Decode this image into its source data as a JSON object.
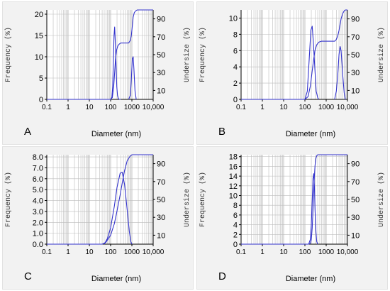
{
  "chart_data": [
    {
      "panel": "A",
      "type": "line",
      "xlabel": "Diameter (nm)",
      "ylabel_left": "Frequency (%)",
      "ylabel_right": "Undersize (%)",
      "xscale": "log",
      "xlim": [
        0.1,
        10000
      ],
      "x_ticks": [
        "0.1",
        "1",
        "10",
        "100",
        "1000",
        "10,000"
      ],
      "ylim": [
        0,
        21
      ],
      "y_ticks": [
        "0",
        "5",
        "10",
        "15",
        "20"
      ],
      "ylim_right": [
        0,
        100
      ],
      "y2_ticks": [
        "10",
        "30",
        "50",
        "70",
        "90"
      ],
      "grid": true,
      "series": [
        {
          "axis": "left",
          "x": [
            100,
            115,
            125,
            135,
            145,
            155,
            165,
            180,
            195,
            210,
            230,
            260,
            300
          ],
          "y": [
            0,
            0.5,
            3,
            9,
            15,
            17,
            14,
            8,
            3,
            1,
            0.2,
            0,
            0
          ]
        },
        {
          "axis": "left",
          "x": [
            700,
            850,
            950,
            1050,
            1150,
            1250,
            1400,
            1600
          ],
          "y": [
            0,
            1,
            5,
            9.5,
            10,
            7,
            2,
            0
          ]
        },
        {
          "axis": "right",
          "x": [
            0.1,
            100,
            120,
            140,
            155,
            170,
            190,
            220,
            260,
            300,
            500,
            700,
            850,
            950,
            1050,
            1150,
            1300,
            1500,
            1800,
            10000
          ],
          "y": [
            0,
            0,
            2,
            15,
            30,
            45,
            55,
            60,
            62,
            63,
            63,
            63,
            66,
            72,
            82,
            92,
            97,
            99,
            100,
            100
          ]
        }
      ]
    },
    {
      "panel": "B",
      "type": "line",
      "xlabel": "Diameter (nm)",
      "ylabel_left": "Frequency (%)",
      "ylabel_right": "Undersize (%)",
      "xscale": "log",
      "xlim": [
        0.1,
        10000
      ],
      "x_ticks": [
        "0.1",
        "1",
        "10",
        "100",
        "1000",
        "10,000"
      ],
      "ylim": [
        0,
        11
      ],
      "y_ticks": [
        "0",
        "2",
        "4",
        "6",
        "8",
        "10"
      ],
      "ylim_right": [
        0,
        100
      ],
      "y2_ticks": [
        "10",
        "30",
        "50",
        "70",
        "90"
      ],
      "grid": true,
      "series": [
        {
          "axis": "left",
          "x": [
            100,
            130,
            160,
            190,
            220,
            250,
            290,
            340,
            400,
            450
          ],
          "y": [
            0,
            1,
            5,
            8.5,
            9,
            7,
            4,
            1,
            0.2,
            0
          ]
        },
        {
          "axis": "left",
          "x": [
            2500,
            3000,
            3500,
            4000,
            4500,
            5000,
            5500,
            6000,
            7000,
            8000
          ],
          "y": [
            0,
            1,
            3,
            5.5,
            6.5,
            6,
            4.5,
            3,
            0.8,
            0
          ]
        },
        {
          "axis": "right",
          "x": [
            0.1,
            100,
            140,
            180,
            220,
            260,
            300,
            360,
            450,
            600,
            1500,
            2500,
            3000,
            3500,
            4000,
            4500,
            5000,
            6000,
            7000,
            8000,
            10000
          ],
          "y": [
            0,
            0,
            3,
            15,
            32,
            45,
            55,
            61,
            64,
            65,
            65,
            65,
            67,
            71,
            77,
            84,
            90,
            96,
            99,
            100,
            100
          ]
        }
      ]
    },
    {
      "panel": "C",
      "type": "line",
      "xlabel": "Diameter (nm)",
      "ylabel_left": "Frequency (%)",
      "ylabel_right": "Undersize (%)",
      "xscale": "log",
      "xlim": [
        0.1,
        10000
      ],
      "x_ticks": [
        "0.1",
        "1",
        "10",
        "100",
        "1000",
        "10,000"
      ],
      "ylim": [
        0,
        8.2
      ],
      "y_ticks": [
        "0.0",
        "1.0",
        "2.0",
        "3.0",
        "4.0",
        "5.0",
        "6.0",
        "7.0",
        "8.0"
      ],
      "ylim_right": [
        0,
        100
      ],
      "y2_ticks": [
        "10",
        "30",
        "50",
        "70",
        "90"
      ],
      "grid": true,
      "series": [
        {
          "axis": "left",
          "x": [
            50,
            70,
            100,
            150,
            200,
            280,
            350,
            450,
            600,
            750,
            900,
            1000
          ],
          "y": [
            0,
            0.5,
            1.5,
            3.5,
            5.2,
            6.5,
            6.6,
            5.5,
            3.2,
            1.2,
            0.2,
            0
          ]
        },
        {
          "axis": "right",
          "x": [
            0.1,
            40,
            60,
            100,
            150,
            200,
            280,
            350,
            450,
            600,
            800,
            1000,
            1200,
            10000
          ],
          "y": [
            0,
            0,
            2,
            10,
            23,
            37,
            55,
            68,
            82,
            93,
            98,
            100,
            100,
            100
          ]
        }
      ]
    },
    {
      "panel": "D",
      "type": "line",
      "xlabel": "Diameter (nm)",
      "ylabel_left": "Frequency (%)",
      "ylabel_right": "Undersize (%)",
      "xscale": "log",
      "xlim": [
        0.1,
        10000
      ],
      "x_ticks": [
        "0.1",
        "1",
        "10",
        "100",
        "1000",
        "10,000"
      ],
      "ylim": [
        0,
        18.4
      ],
      "y_ticks": [
        "0",
        "2",
        "4",
        "6",
        "8",
        "10",
        "12",
        "14",
        "16",
        "18"
      ],
      "ylim_right": [
        0,
        100
      ],
      "y2_ticks": [
        "10",
        "30",
        "50",
        "70",
        "90"
      ],
      "grid": true,
      "series": [
        {
          "axis": "left",
          "x": [
            150,
            180,
            200,
            220,
            240,
            260,
            280,
            300,
            330,
            360,
            400
          ],
          "y": [
            0,
            1,
            4,
            9,
            13.5,
            14.5,
            12,
            7,
            2.5,
            0.5,
            0
          ]
        },
        {
          "axis": "right",
          "x": [
            0.1,
            150,
            180,
            200,
            220,
            240,
            260,
            280,
            300,
            330,
            360,
            400,
            10000
          ],
          "y": [
            0,
            0,
            1,
            5,
            18,
            38,
            58,
            76,
            88,
            96,
            99,
            100,
            100
          ]
        }
      ]
    }
  ],
  "style": {
    "line_color": "#3333cc",
    "grid_color": "#bdbdbd",
    "panel_bg": "#f2f2f2",
    "plot_bg": "#ffffff"
  }
}
